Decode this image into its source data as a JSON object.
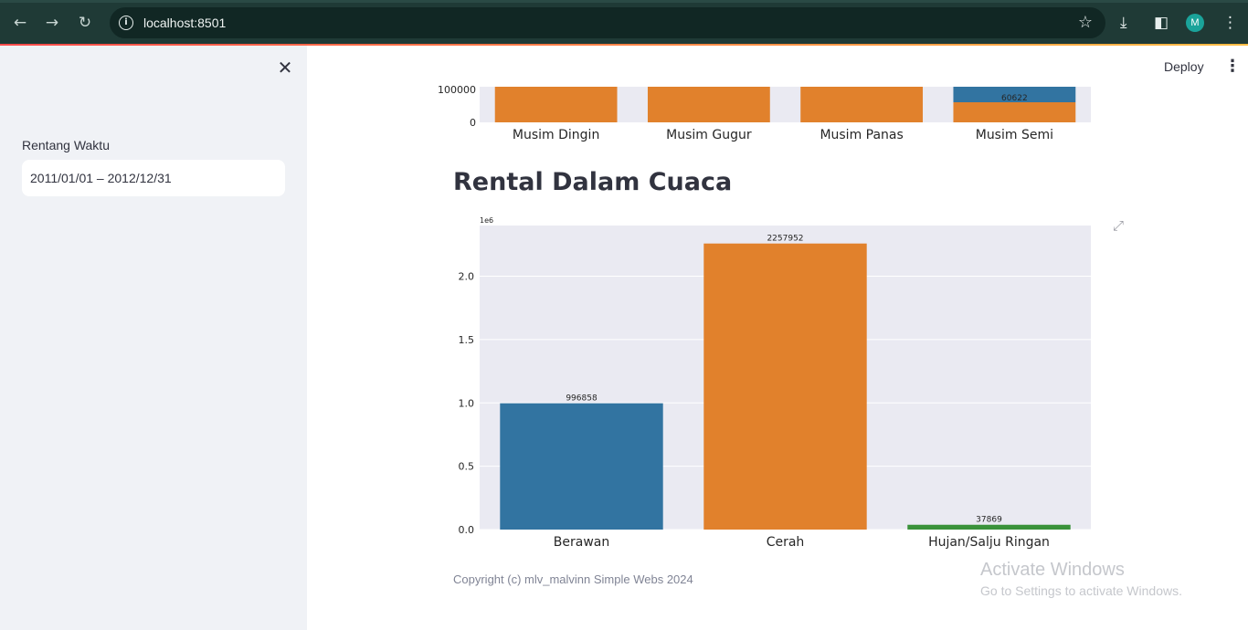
{
  "browser": {
    "url": "localhost:8501",
    "profile_initial": "M",
    "icons": [
      "back-arrow-icon",
      "forward-arrow-icon",
      "reload-icon",
      "info-icon",
      "star-icon",
      "download-icon",
      "side-panel-icon",
      "more-vert-icon"
    ]
  },
  "sidebar": {
    "date_range_label": "Rentang Waktu",
    "date_range_value": "2011/01/01 – 2012/12/31"
  },
  "header": {
    "deploy_label": "Deploy"
  },
  "main": {
    "weather_section_title": "Rental Dalam Cuaca",
    "footer": "Copyright (c) mlv_malvinn Simple Webs 2024"
  },
  "watermark": {
    "title": "Activate Windows",
    "subtitle": "Go to Settings to activate Windows."
  },
  "colors": {
    "blue": "#3274a1",
    "orange": "#e1812c",
    "green": "#3a923a",
    "plot_bg": "#eaeaf2",
    "accent_red": "#ff4b4b"
  },
  "chart_data": [
    {
      "type": "bar",
      "partial": true,
      "categories": [
        "Musim Dingin",
        "Musim Gugur",
        "Musim Panas",
        "Musim Semi"
      ],
      "series": [
        {
          "values": [
            null,
            null,
            null,
            60622
          ]
        },
        {
          "values": [
            null,
            null,
            null,
            null
          ]
        }
      ],
      "visible_y_ticks": [
        "100000",
        "0"
      ]
    },
    {
      "type": "bar",
      "title": "Rental Dalam Cuaca",
      "categories": [
        "Berawan",
        "Cerah",
        "Hujan/Salju Ringan"
      ],
      "values": [
        996858,
        2257952,
        37869
      ],
      "data_labels": [
        "996858",
        "2257952",
        "37869"
      ],
      "ylim": [
        0,
        2400000
      ],
      "y_ticks": [
        "0.0",
        "0.5",
        "1.0",
        "1.5",
        "2.0"
      ],
      "y_offset_label": "1e6",
      "grid": true
    }
  ]
}
